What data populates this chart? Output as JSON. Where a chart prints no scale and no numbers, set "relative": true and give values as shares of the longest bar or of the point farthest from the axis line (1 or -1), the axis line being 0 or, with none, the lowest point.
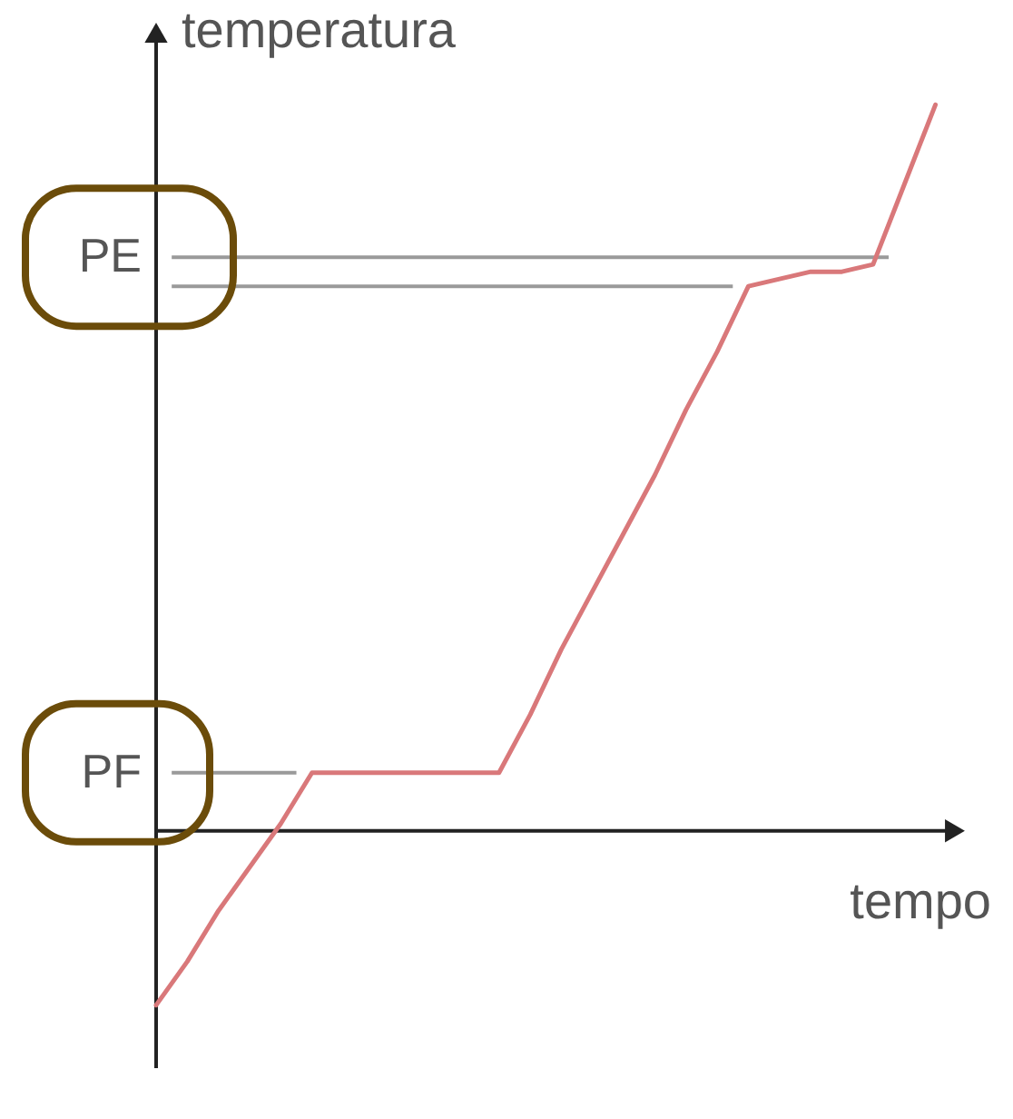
{
  "chart_data": {
    "type": "line",
    "relative": true,
    "xlabel": "tempo",
    "ylabel": "temperatura",
    "categories": [
      null,
      null,
      null,
      null,
      null,
      null,
      null,
      null,
      null,
      null,
      null,
      null,
      null,
      null,
      null,
      null,
      null,
      null,
      null,
      null,
      null,
      null,
      null,
      null,
      null,
      null
    ],
    "series": [
      {
        "color": "#d9787a",
        "values": [
          -0.24,
          -0.18,
          -0.11,
          -0.05,
          0.01,
          0.08,
          0.08,
          0.08,
          0.08,
          0.08,
          0.08,
          0.08,
          0.16,
          0.25,
          0.33,
          0.41,
          0.49,
          0.58,
          0.66,
          0.75,
          0.76,
          0.77,
          0.77,
          0.78,
          0.89,
          1
        ]
      }
    ],
    "ref_lines": [
      {
        "axis": "y",
        "value": 0.08,
        "label": "PF",
        "color": "#9a9a9a"
      },
      {
        "axis": "y",
        "value": 0.79,
        "label": "PE",
        "color": "#9a9a9a"
      },
      {
        "axis": "y",
        "value": 0.75,
        "color": "#9a9a9a"
      }
    ]
  }
}
